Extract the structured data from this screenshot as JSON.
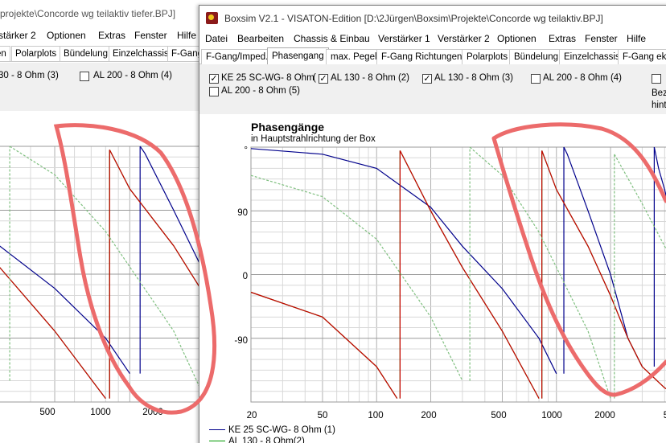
{
  "back_window": {
    "title": "projekte\\Concorde wg teilaktiv tiefer.BPJ]",
    "menu": [
      "stärker 2",
      "Optionen",
      "Extras",
      "Fenster",
      "Hilfe"
    ],
    "tabs": [
      "en",
      "Polarplots",
      "Bündelung",
      "Einzelchassis",
      "F-Gang"
    ],
    "checks": [
      {
        "label": "30 - 8 Ohm (3)",
        "checked": null
      },
      {
        "label": "AL 200 - 8 Ohm (4)",
        "checked": false
      }
    ],
    "xticks": [
      "500",
      "1000",
      "2000"
    ]
  },
  "front_window": {
    "title": "Boxsim V2.1 - VISATON-Edition [D:\\2Jürgen\\Boxsim\\Projekte\\Concorde wg teilaktiv.BPJ]",
    "menu": [
      "Datei",
      "Bearbeiten",
      "Chassis & Einbau",
      "Verstärker 1",
      "Verstärker 2",
      "Optionen",
      "Extras",
      "Fenster",
      "Hilfe"
    ],
    "tabs": [
      "F-Gang/Imped.",
      "Phasengang",
      "max. Pegel",
      "F-Gang Richtungen",
      "Polarplots",
      "Bündelung",
      "Einzelchassis",
      "F-Gang eko"
    ],
    "active_tab": "Phasengang",
    "checks": [
      {
        "label": "KE 25 SC-WG- 8 Ohm",
        "checked": true
      },
      {
        "label": "AL 130 - 8 Ohm (2)",
        "checked": true
      },
      {
        "label": "AL 130 - 8 Ohm (3)",
        "checked": true
      },
      {
        "label": "AL 200 - 8 Ohm (4)",
        "checked": false
      },
      {
        "label": "AL 200 - 8 Ohm (5)",
        "checked": false
      }
    ],
    "checks_paren": "(",
    "right_cut": {
      "line1": "Bez",
      "line2": "hint"
    },
    "legend": [
      {
        "label": "KE 25 SC-WG- 8 Ohm   (1)",
        "color": "#00008b"
      },
      {
        "label": "AL 130 - 8 Ohm(2)",
        "color": "#009900"
      }
    ]
  },
  "chart_data": {
    "type": "line",
    "title": "Phasengänge",
    "subtitle": "in Hauptstrahlrichtung der Box",
    "xlabel": "",
    "ylabel": "°",
    "x_scale": "log",
    "xlim": [
      20,
      5000
    ],
    "ylim": [
      -180,
      180
    ],
    "yticks": [
      "°",
      "90",
      "0",
      "-90"
    ],
    "xticks": [
      "20",
      "50",
      "100",
      "200",
      "500",
      "1000",
      "2000",
      "5"
    ],
    "grid": true,
    "series": [
      {
        "name": "KE 25 SC-WG- 8 Ohm   (1)",
        "color": "#00008b",
        "x": [
          20,
          50,
          100,
          200,
          300,
          500,
          800,
          1000,
          1100,
          1150,
          1500,
          2000,
          2500,
          3000,
          3500,
          3700,
          4000,
          5000
        ],
        "y": [
          178,
          170,
          150,
          95,
          40,
          -20,
          -90,
          -140,
          180,
          170,
          90,
          0,
          -90,
          -130,
          180,
          150,
          120,
          20
        ]
      },
      {
        "name": "AL 130 - 8 Ohm(2)",
        "color": "#009900",
        "x": [
          20,
          50,
          100,
          130,
          135,
          200,
          300,
          500,
          800,
          830,
          1000,
          1500,
          2000,
          2500,
          3000,
          4000,
          5000
        ],
        "y": [
          -25,
          -60,
          -130,
          -175,
          175,
          90,
          10,
          -80,
          -175,
          175,
          120,
          40,
          -30,
          -90,
          -130,
          -160,
          -175
        ]
      },
      {
        "name": "AL 130 - 8 Ohm (3)",
        "color": "#cc0000",
        "x": [
          20,
          50,
          100,
          130,
          135,
          200,
          300,
          500,
          800,
          830,
          1000,
          1500,
          2000,
          2500,
          3000,
          4000,
          5000
        ],
        "y": [
          -25,
          -60,
          -130,
          -175,
          175,
          90,
          10,
          -80,
          -175,
          175,
          120,
          40,
          -30,
          -90,
          -130,
          -160,
          -175
        ]
      },
      {
        "name": "",
        "color": "#7fbf7f",
        "dashed": true,
        "x": [
          20,
          50,
          100,
          200,
          300,
          330,
          500,
          800,
          1500,
          2000,
          2100,
          3000,
          4000,
          5000
        ],
        "y": [
          140,
          110,
          50,
          -60,
          -150,
          180,
          140,
          60,
          -80,
          -175,
          170,
          100,
          40,
          0
        ]
      }
    ]
  }
}
